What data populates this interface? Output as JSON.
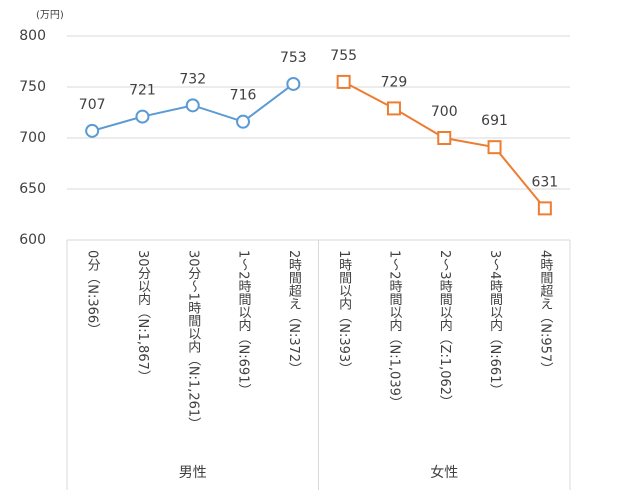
{
  "chart_data": {
    "type": "line",
    "unit": "(万円)",
    "categories": [
      "0分（N:366）",
      "30分以内（N:1,867）",
      "30分～1時間以内（N:1,261）",
      "1～2時間以内（N:691）",
      "2時間超え（N:372）",
      "1時間以内（N:393）",
      "1～2時間以内（N:1,039）",
      "2～3時間以内（Z:1,062）",
      "3～4時間以内（N:661）",
      "4時間超え（N:957）"
    ],
    "series": [
      {
        "name": "男性",
        "color": "#5b9bd5",
        "marker": "circle",
        "values": [
          707,
          721,
          732,
          716,
          753,
          null,
          null,
          null,
          null,
          null
        ]
      },
      {
        "name": "女性",
        "color": "#ed7d31",
        "marker": "square",
        "values": [
          null,
          null,
          null,
          null,
          null,
          755,
          729,
          700,
          691,
          631
        ]
      }
    ],
    "ylim": [
      600,
      800
    ],
    "yticks": [
      600,
      650,
      700,
      750,
      800
    ],
    "grid": true
  }
}
